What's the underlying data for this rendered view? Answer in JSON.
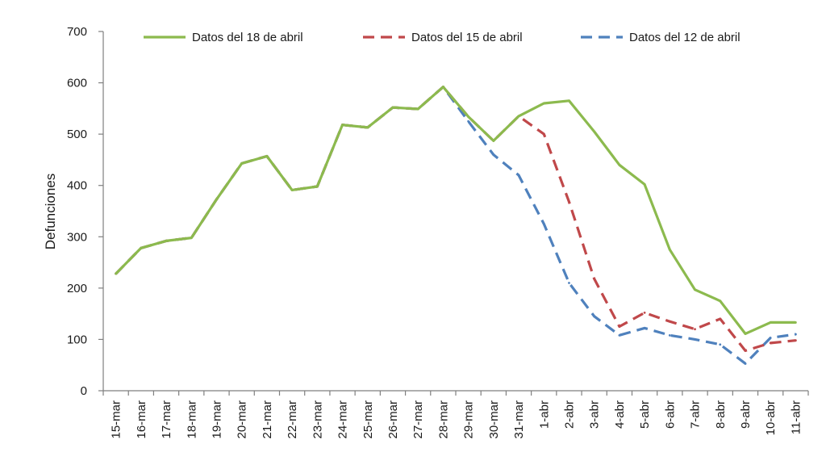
{
  "chart_data": {
    "type": "line",
    "ylabel": "Defunciones",
    "xlabel": "",
    "ylim": [
      0,
      700
    ],
    "yticks": [
      0,
      100,
      200,
      300,
      400,
      500,
      600,
      700
    ],
    "grid": false,
    "legend_position": "top",
    "categories": [
      "15-mar",
      "16-mar",
      "17-mar",
      "18-mar",
      "19-mar",
      "20-mar",
      "21-mar",
      "22-mar",
      "23-mar",
      "24-mar",
      "25-mar",
      "26-mar",
      "27-mar",
      "28-mar",
      "29-mar",
      "30-mar",
      "31-mar",
      "1-abr",
      "2-abr",
      "3-abr",
      "4-abr",
      "5-abr",
      "6-abr",
      "7-abr",
      "8-abr",
      "9-abr",
      "10-abr",
      "11-abr"
    ],
    "series": [
      {
        "name": "Datos del 18 de abril",
        "color": "#8cba4e",
        "style": "solid",
        "values": [
          228,
          278,
          292,
          298,
          373,
          443,
          457,
          391,
          398,
          518,
          513,
          552,
          549,
          592,
          534,
          487,
          535,
          560,
          565,
          505,
          440,
          402,
          275,
          197,
          175,
          111,
          133,
          133
        ]
      },
      {
        "name": "Datos del 15 de abril",
        "color": "#c0484a",
        "style": "dashed",
        "values": [
          228,
          278,
          292,
          298,
          373,
          443,
          457,
          391,
          398,
          518,
          513,
          552,
          549,
          592,
          534,
          487,
          535,
          500,
          368,
          218,
          125,
          152,
          135,
          120,
          140,
          78,
          93,
          98
        ]
      },
      {
        "name": "Datos del 12 de abril",
        "color": "#4f81bd",
        "style": "dashed",
        "values": [
          228,
          278,
          292,
          298,
          373,
          443,
          457,
          391,
          398,
          518,
          513,
          552,
          549,
          592,
          525,
          460,
          420,
          325,
          210,
          145,
          108,
          122,
          108,
          100,
          90,
          53,
          103,
          110
        ]
      }
    ]
  }
}
